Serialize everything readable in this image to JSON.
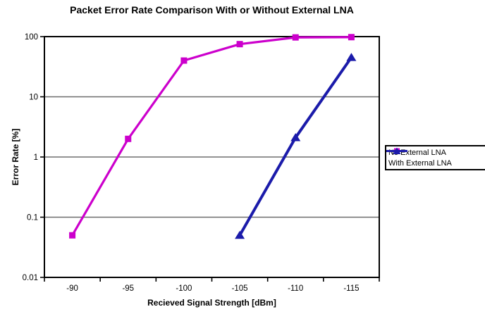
{
  "figure": {
    "background": "#FFFFFF",
    "title": "Packet Error Rate Comparison With or Without External LNA"
  },
  "chart_data": {
    "type": "line",
    "title": "Packet Error Rate Comparison With or Without External LNA",
    "xlabel": "Recieved Signal Strength [dBm]",
    "ylabel": "Error Rate [%]",
    "yscale": "log",
    "ylim": [
      0.01,
      100
    ],
    "y_ticks": [
      100,
      10,
      1,
      0.1,
      0.01
    ],
    "y_tick_labels": [
      "100",
      "10",
      "1",
      "0.1",
      "0.01"
    ],
    "categories": [
      "-90",
      "-95",
      "-100",
      "-105",
      "-110",
      "-115"
    ],
    "grid": "horizontal-major",
    "legend_position": "right-outside",
    "series": [
      {
        "name": "No External LNA",
        "color": "#CC00CC",
        "marker": "square",
        "line_width": 3.2,
        "values": [
          0.05,
          2,
          40,
          75,
          97,
          98
        ]
      },
      {
        "name": "With External LNA",
        "color": "#1B1BAA",
        "marker": "triangle",
        "line_width": 4,
        "values": [
          null,
          null,
          null,
          0.05,
          2.1,
          45
        ]
      }
    ],
    "colors": {
      "axis": "#000000",
      "gridline": "#6E6E6E",
      "text": "#000000"
    }
  }
}
